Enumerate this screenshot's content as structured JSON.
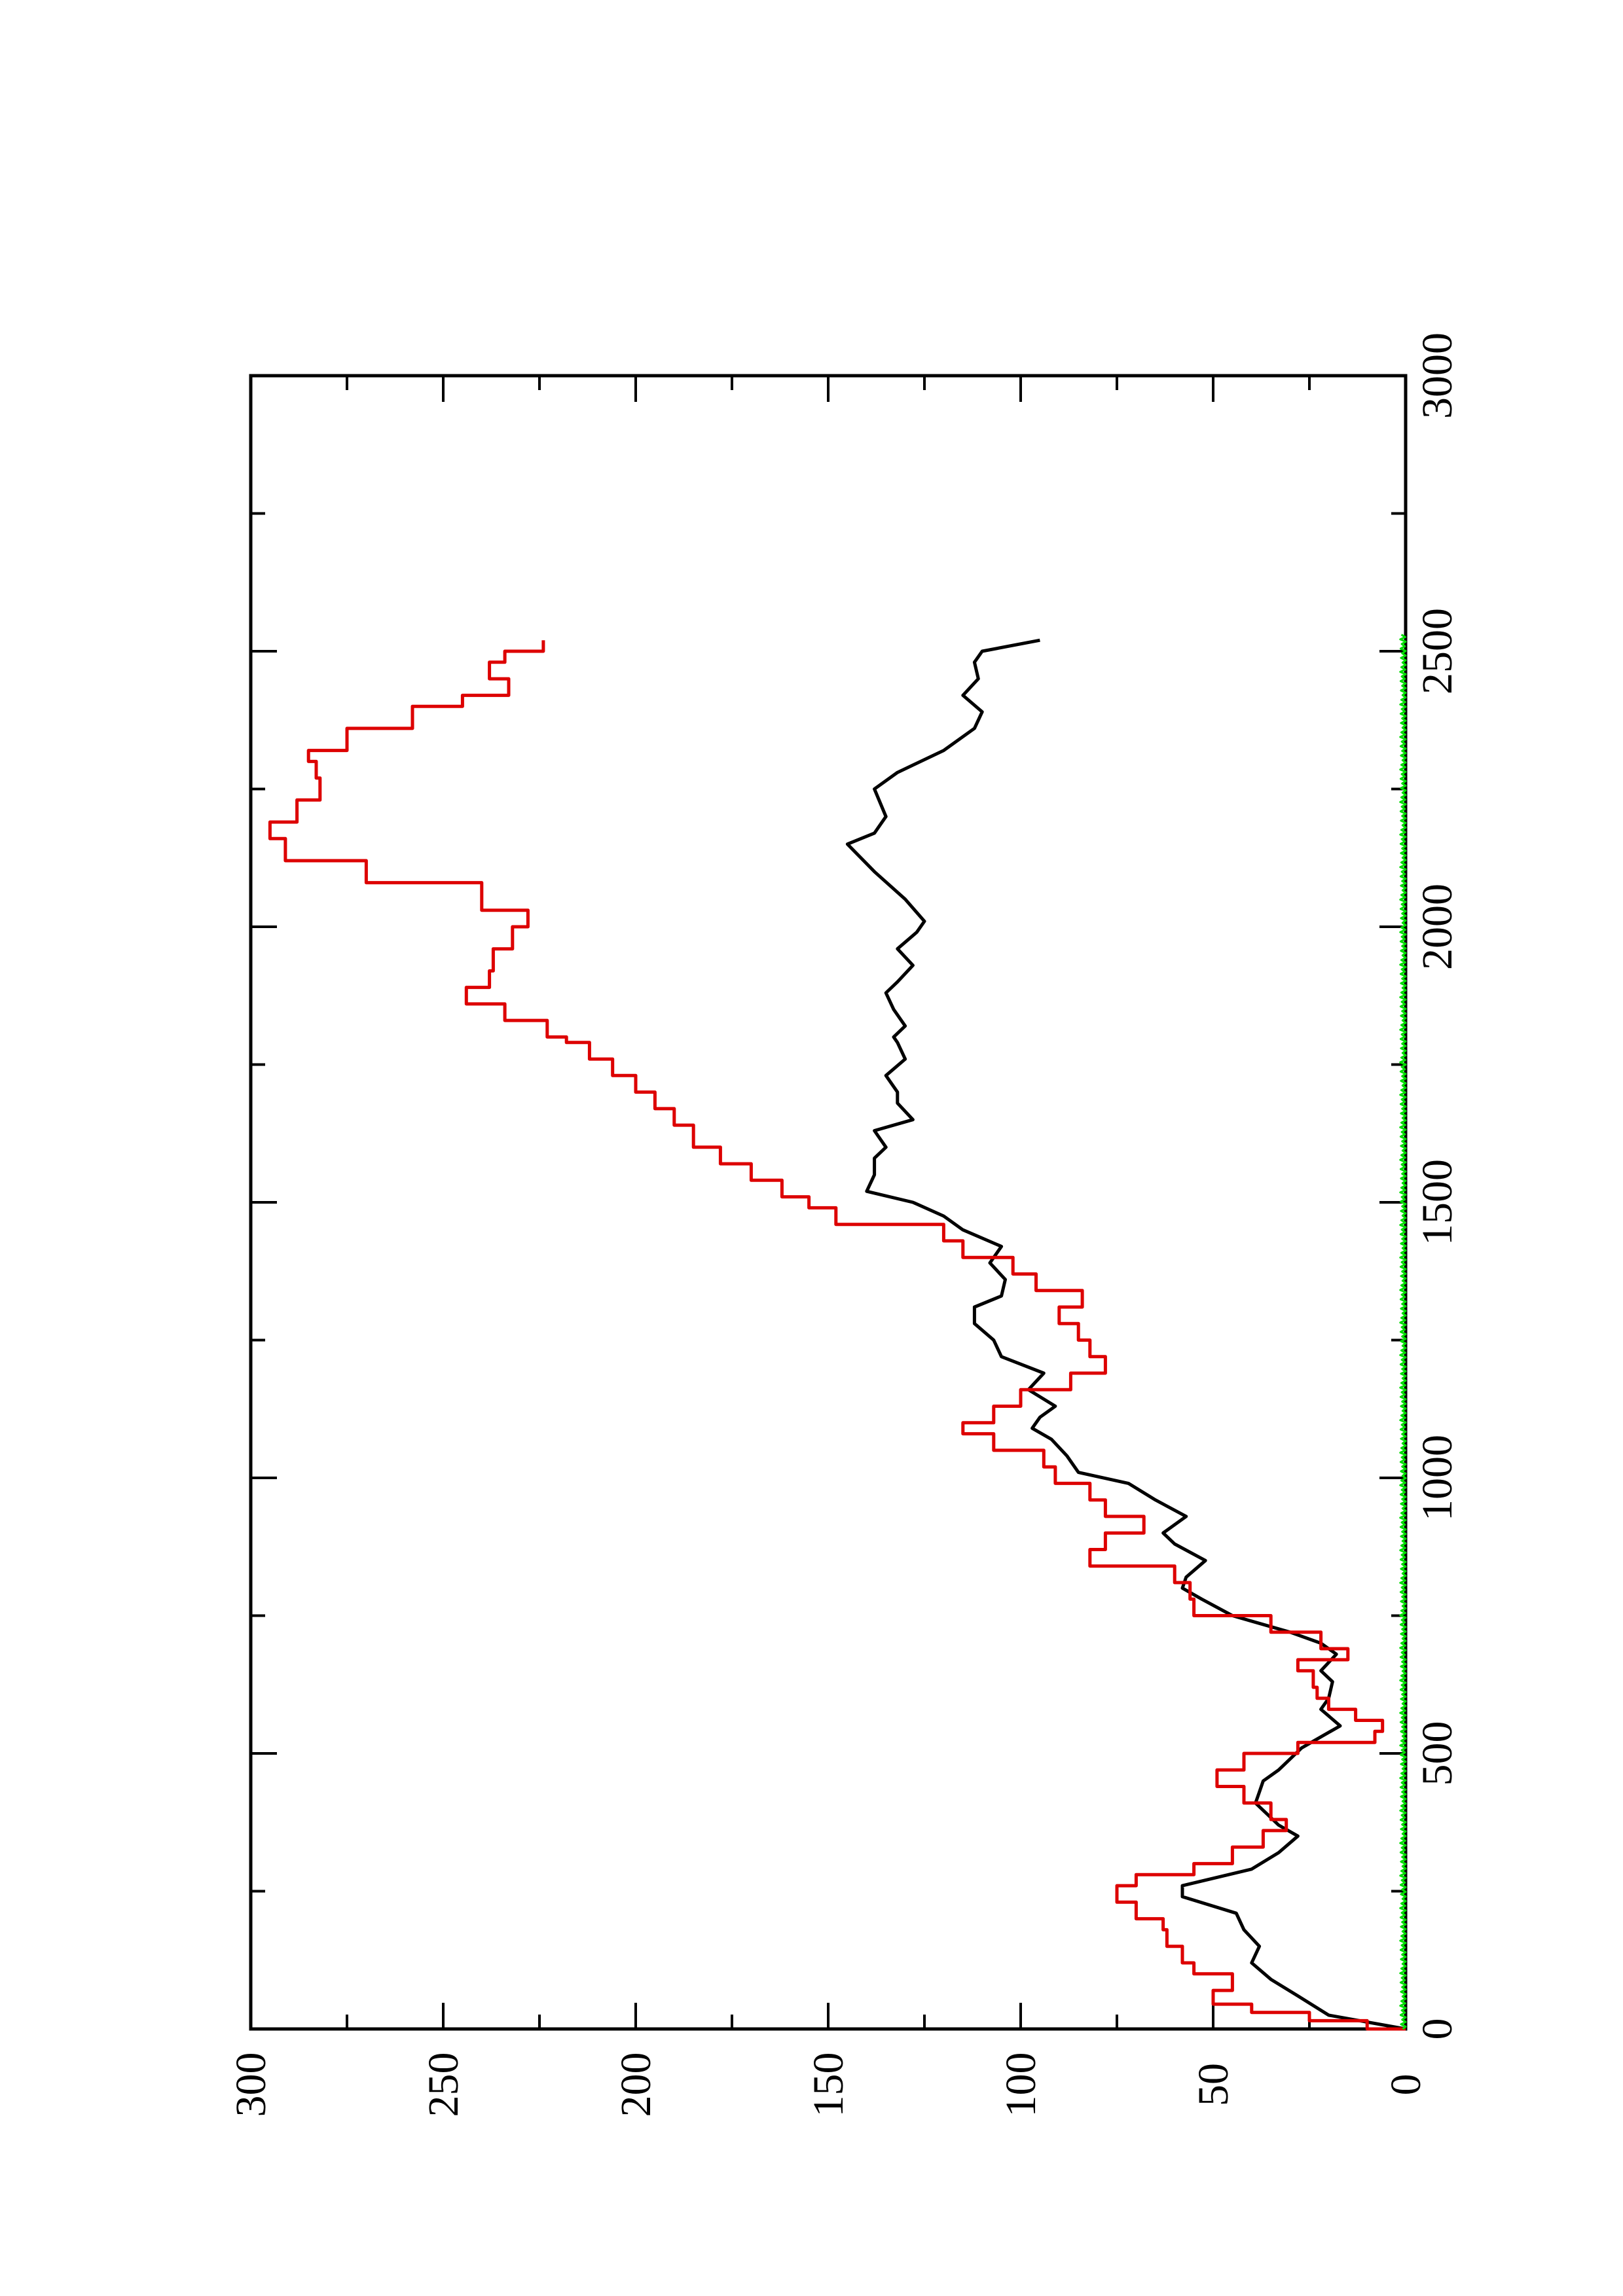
{
  "chart_data": {
    "type": "line",
    "title": "",
    "xlabel": "",
    "ylabel": "",
    "xlim": [
      0,
      3000
    ],
    "ylim": [
      0,
      300
    ],
    "x_major_ticks": [
      0,
      500,
      1000,
      1500,
      2000,
      2500,
      3000
    ],
    "x_minor_ticks": [
      250,
      750,
      1250,
      1750,
      2250,
      2750
    ],
    "y_major_ticks": [
      0,
      50,
      100,
      150,
      200,
      250,
      300
    ],
    "y_minor_ticks": [
      25,
      75,
      125,
      175,
      225,
      275
    ],
    "x_tick_labels": [
      "0",
      "500",
      "1000",
      "1500",
      "2000",
      "2500",
      "3000"
    ],
    "y_tick_labels": [
      "0",
      "50",
      "100",
      "150",
      "200",
      "250",
      "300"
    ],
    "orientation": "rotated 90 degrees counter-clockwise (portrait page)",
    "grid": false,
    "legend": "none",
    "series": [
      {
        "color": "#000000",
        "style": "line",
        "x": [
          0,
          25,
          60,
          90,
          120,
          150,
          180,
          210,
          240,
          260,
          290,
          320,
          350,
          370,
          390,
          410,
          430,
          450,
          470,
          490,
          510,
          530,
          550,
          580,
          600,
          630,
          650,
          680,
          700,
          720,
          750,
          780,
          800,
          820,
          850,
          880,
          900,
          930,
          960,
          990,
          1010,
          1040,
          1070,
          1090,
          1110,
          1130,
          1160,
          1190,
          1220,
          1250,
          1280,
          1310,
          1330,
          1360,
          1390,
          1420,
          1450,
          1475,
          1500,
          1520,
          1550,
          1580,
          1600,
          1630,
          1650,
          1680,
          1700,
          1730,
          1760,
          1790,
          1800,
          1820,
          1850,
          1880,
          1900,
          1930,
          1960,
          1990,
          2010,
          2050,
          2100,
          2150,
          2170,
          2200,
          2250,
          2280,
          2320,
          2360,
          2390,
          2420,
          2450,
          2480,
          2500,
          2520
        ],
        "y": [
          0,
          20,
          28,
          35,
          40,
          38,
          42,
          44,
          58,
          58,
          40,
          33,
          28,
          33,
          36,
          39,
          38,
          37,
          33,
          30,
          27,
          22,
          17,
          22,
          20,
          19,
          22,
          18,
          22,
          30,
          45,
          53,
          58,
          57,
          52,
          60,
          63,
          57,
          65,
          72,
          85,
          88,
          92,
          97,
          95,
          91,
          98,
          94,
          105,
          107,
          112,
          112,
          105,
          104,
          108,
          105,
          115,
          120,
          128,
          140,
          138,
          138,
          135,
          138,
          128,
          132,
          132,
          135,
          130,
          132,
          133,
          130,
          133,
          135,
          132,
          128,
          132,
          127,
          125,
          130,
          138,
          145,
          138,
          135,
          138,
          132,
          120,
          112,
          110,
          115,
          111,
          112,
          110,
          95
        ]
      },
      {
        "color": "#dd0000",
        "style": "stepped line",
        "x": [
          0,
          15,
          30,
          45,
          70,
          100,
          120,
          150,
          180,
          200,
          230,
          260,
          280,
          300,
          330,
          360,
          380,
          410,
          440,
          470,
          500,
          520,
          540,
          560,
          580,
          600,
          620,
          650,
          670,
          690,
          720,
          750,
          780,
          810,
          840,
          870,
          900,
          930,
          960,
          990,
          1020,
          1050,
          1080,
          1100,
          1130,
          1160,
          1190,
          1220,
          1250,
          1280,
          1310,
          1340,
          1370,
          1400,
          1430,
          1460,
          1490,
          1510,
          1540,
          1570,
          1600,
          1640,
          1670,
          1700,
          1730,
          1760,
          1790,
          1800,
          1830,
          1860,
          1890,
          1920,
          1960,
          2000,
          2030,
          2080,
          2120,
          2160,
          2190,
          2230,
          2270,
          2300,
          2320,
          2360,
          2400,
          2420,
          2450,
          2480,
          2500,
          2520
        ],
        "y": [
          0,
          10,
          25,
          40,
          50,
          45,
          55,
          58,
          62,
          63,
          70,
          75,
          70,
          55,
          45,
          37,
          31,
          35,
          42,
          49,
          42,
          28,
          8,
          6,
          13,
          20,
          23,
          24,
          28,
          15,
          22,
          35,
          55,
          56,
          60,
          82,
          78,
          68,
          78,
          82,
          91,
          94,
          107,
          115,
          107,
          100,
          87,
          78,
          82,
          85,
          90,
          84,
          96,
          102,
          115,
          120,
          148,
          155,
          162,
          170,
          178,
          185,
          190,
          195,
          200,
          206,
          212,
          218,
          223,
          234,
          244,
          238,
          237,
          232,
          228,
          240,
          270,
          291,
          295,
          288,
          282,
          283,
          285,
          275,
          258,
          245,
          233,
          238,
          234,
          224
        ]
      },
      {
        "color": "#00dd00",
        "style": "noisy line near zero",
        "x": [
          0,
          100,
          200,
          300,
          400,
          500,
          600,
          700,
          800,
          900,
          1000,
          1100,
          1200,
          1300,
          1400,
          1500,
          1600,
          1700,
          1800,
          1900,
          2000,
          2100,
          2200,
          2300,
          2400,
          2500,
          2530
        ],
        "y": [
          0.5,
          0.4,
          0.6,
          0.5,
          0.5,
          0.6,
          0.5,
          0.4,
          0.6,
          0.5,
          0.5,
          0.6,
          0.4,
          0.5,
          0.6,
          0.5,
          0.4,
          0.5,
          0.6,
          0.5,
          0.5,
          0.4,
          0.6,
          0.5,
          0.5,
          0.5,
          0
        ]
      }
    ]
  }
}
